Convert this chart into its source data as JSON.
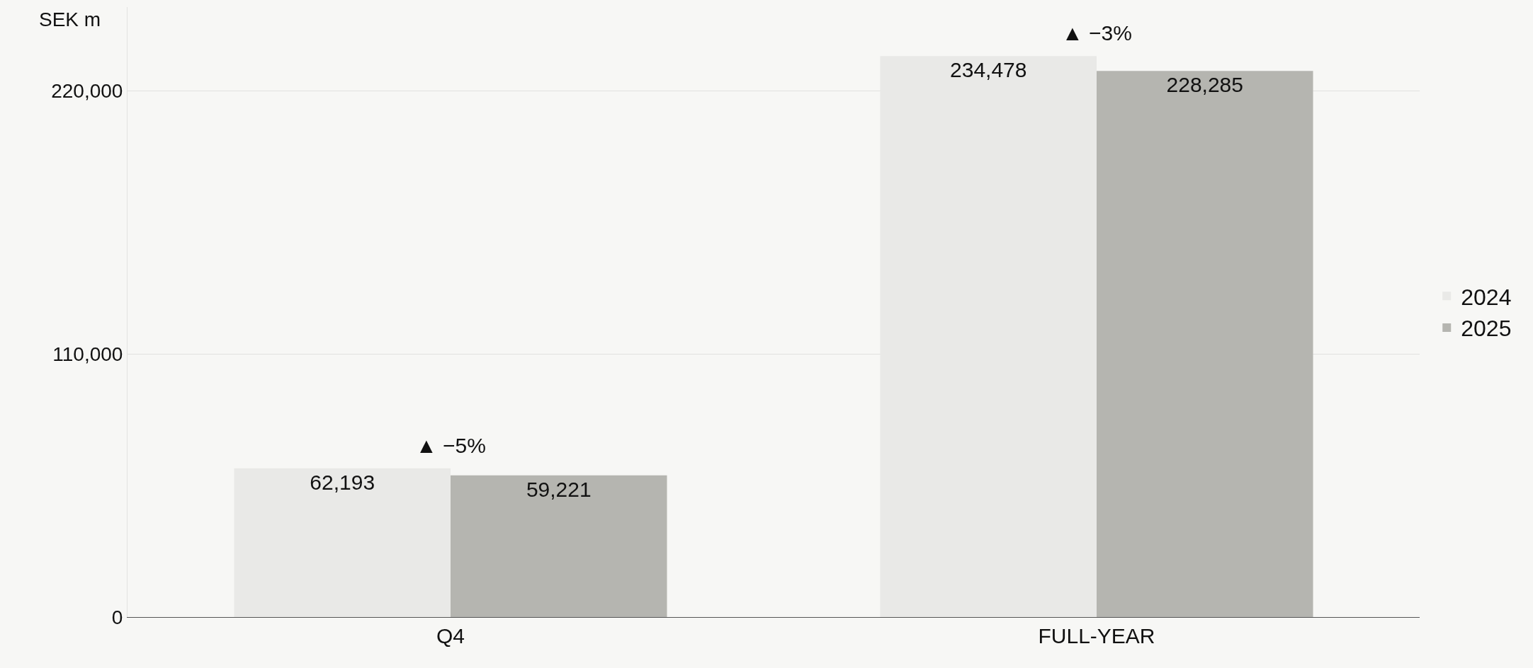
{
  "chart_data": {
    "type": "bar",
    "ylabel": "SEK m",
    "categories": [
      "Q4",
      "FULL-YEAR"
    ],
    "series": [
      {
        "name": "2024",
        "color": "#e9e9e7",
        "values": [
          62193,
          234478
        ],
        "value_labels": [
          "62,193",
          "234,478"
        ]
      },
      {
        "name": "2025",
        "color": "#b5b5b0",
        "values": [
          59221,
          228285
        ],
        "value_labels": [
          "59,221",
          "228,285"
        ]
      }
    ],
    "ylim": [
      0,
      255000
    ],
    "yticks": [
      {
        "value": 0,
        "label": "0"
      },
      {
        "value": 110000,
        "label": "110,000"
      },
      {
        "value": 220000,
        "label": "220,000"
      }
    ],
    "grid": "y",
    "legend": "right",
    "annotations": [
      "▲ −5%",
      "▲ −3%"
    ]
  }
}
